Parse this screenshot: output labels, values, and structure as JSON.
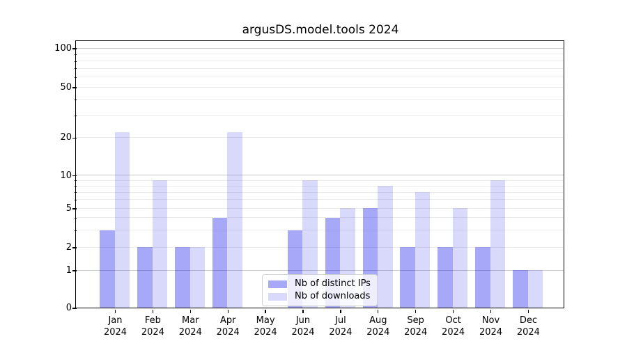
{
  "title": "argusDS.model.tools 2024",
  "colors": {
    "background": "#ffffff",
    "bar_distinct_ips": "rgba(0,0,235,0.34)",
    "bar_downloads": "rgba(0,0,235,0.15)",
    "bar_distinct_ips_hex": "#a8a8f8",
    "bar_downloads_hex": "#d9d9fc",
    "grid_minor": "#ebebeb",
    "grid_major": "#c8c8c8",
    "axis": "#000000",
    "text": "#000000"
  },
  "chart_data": {
    "type": "bar",
    "title": "argusDS.model.tools 2024",
    "months": [
      "Jan",
      "Feb",
      "Mar",
      "Apr",
      "May",
      "Jun",
      "Jul",
      "Aug",
      "Sep",
      "Oct",
      "Nov",
      "Dec"
    ],
    "year": "2024",
    "x_categories": [
      "Jan 2024",
      "Feb 2024",
      "Mar 2024",
      "Apr 2024",
      "May 2024",
      "Jun 2024",
      "Jul 2024",
      "Aug 2024",
      "Sep 2024",
      "Oct 2024",
      "Nov 2024",
      "Dec 2024"
    ],
    "series": [
      {
        "name": "Nb of distinct IPs",
        "values": [
          3,
          2,
          2,
          4,
          0,
          3,
          4,
          5,
          2,
          2,
          2,
          1
        ]
      },
      {
        "name": "Nb of downloads",
        "values": [
          22,
          9,
          2,
          22,
          0,
          9,
          5,
          8,
          7,
          5,
          9,
          1
        ]
      }
    ],
    "yscale": "symlog-like (linear 0-1, log above 1)",
    "ylim": [
      0,
      110
    ],
    "yticks": [
      {
        "value": 0,
        "label": "0"
      },
      {
        "value": 1,
        "label": "1"
      },
      {
        "value": 2,
        "label": "2"
      },
      {
        "value": 5,
        "label": "5"
      },
      {
        "value": 10,
        "label": "10"
      },
      {
        "value": 20,
        "label": "20"
      },
      {
        "value": 50,
        "label": "50"
      },
      {
        "value": 100,
        "label": "100"
      }
    ],
    "minor_tick_values": [
      3,
      4,
      6,
      7,
      8,
      9,
      30,
      40,
      60,
      70,
      80,
      90
    ],
    "major_gridlines": [
      1,
      10,
      100
    ],
    "minor_gridlines": [
      2,
      3,
      4,
      5,
      6,
      7,
      8,
      9,
      20,
      30,
      40,
      50,
      60,
      70,
      80,
      90
    ],
    "grid": true,
    "legend": {
      "position": "lower center",
      "labels": [
        "Nb of distinct IPs",
        "Nb of downloads"
      ]
    }
  }
}
